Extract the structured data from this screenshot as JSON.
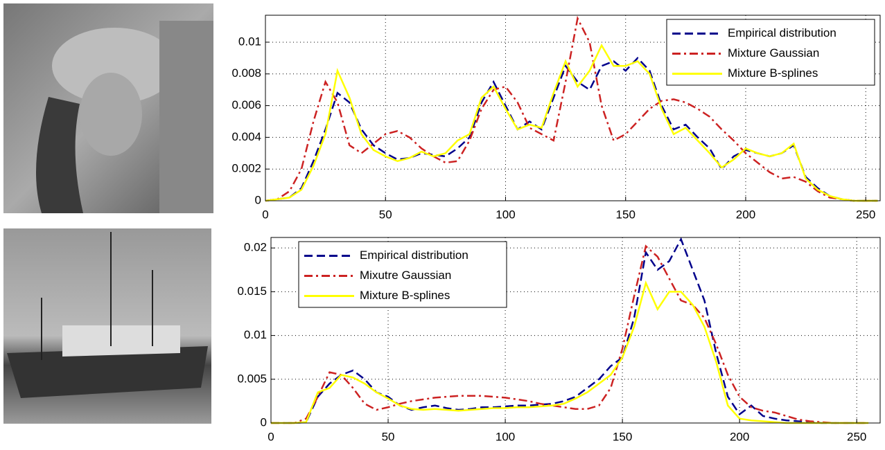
{
  "chart_data": [
    {
      "type": "line",
      "x": [
        0,
        5,
        10,
        15,
        20,
        25,
        30,
        35,
        40,
        45,
        50,
        55,
        60,
        65,
        70,
        75,
        80,
        85,
        90,
        95,
        100,
        105,
        110,
        115,
        120,
        125,
        130,
        135,
        140,
        145,
        150,
        155,
        160,
        165,
        170,
        175,
        180,
        185,
        190,
        195,
        200,
        205,
        210,
        215,
        220,
        225,
        230,
        235,
        240,
        245,
        250,
        255
      ],
      "series": [
        {
          "name": "Empirical distribution",
          "color": "#00008b",
          "style": "dashed",
          "values": [
            0,
            0.0001,
            0.0002,
            0.0008,
            0.0025,
            0.0045,
            0.0068,
            0.0062,
            0.0045,
            0.0035,
            0.003,
            0.0026,
            0.0027,
            0.003,
            0.0029,
            0.0028,
            0.0033,
            0.004,
            0.0062,
            0.0075,
            0.006,
            0.0045,
            0.005,
            0.0045,
            0.0065,
            0.0085,
            0.0075,
            0.007,
            0.0085,
            0.0088,
            0.0082,
            0.009,
            0.0082,
            0.006,
            0.0045,
            0.0048,
            0.004,
            0.0033,
            0.002,
            0.0028,
            0.0032,
            0.003,
            0.0028,
            0.003,
            0.0035,
            0.0015,
            0.0008,
            0.0003,
            0.0001,
            0,
            0,
            0
          ]
        },
        {
          "name": "Mixture Gaussian",
          "color": "#cc2222",
          "style": "dashdot",
          "values": [
            0,
            0.0001,
            0.0006,
            0.002,
            0.005,
            0.0075,
            0.0062,
            0.0035,
            0.003,
            0.0036,
            0.0042,
            0.0044,
            0.004,
            0.0033,
            0.0028,
            0.0024,
            0.0025,
            0.0038,
            0.0058,
            0.007,
            0.0072,
            0.0062,
            0.0046,
            0.0042,
            0.0038,
            0.0075,
            0.0115,
            0.01,
            0.006,
            0.0038,
            0.0042,
            0.005,
            0.0058,
            0.0063,
            0.0064,
            0.0062,
            0.0058,
            0.0053,
            0.0045,
            0.0038,
            0.003,
            0.0024,
            0.0018,
            0.0014,
            0.0015,
            0.0012,
            0.0006,
            0.0002,
            0.0001,
            0,
            0,
            0
          ]
        },
        {
          "name": "Mixture B-splines",
          "color": "#ffff00",
          "style": "solid",
          "values": [
            0,
            0.0001,
            0.0002,
            0.0007,
            0.0022,
            0.0042,
            0.0082,
            0.0065,
            0.0042,
            0.0032,
            0.0028,
            0.0025,
            0.0027,
            0.0031,
            0.0028,
            0.003,
            0.0038,
            0.0042,
            0.0065,
            0.0072,
            0.0058,
            0.0045,
            0.0048,
            0.0046,
            0.0068,
            0.0088,
            0.0072,
            0.0082,
            0.0098,
            0.0085,
            0.0085,
            0.0088,
            0.008,
            0.0058,
            0.0042,
            0.0046,
            0.0038,
            0.003,
            0.0021,
            0.0026,
            0.0033,
            0.003,
            0.0028,
            0.003,
            0.0036,
            0.0014,
            0.0007,
            0.0003,
            0.0001,
            0,
            0,
            0
          ]
        }
      ],
      "xlim": [
        0,
        256
      ],
      "xticks": [
        0,
        50,
        100,
        150,
        200,
        250
      ],
      "ylim": [
        0,
        0.0117
      ],
      "yticks": [
        0,
        0.002,
        0.004,
        0.006,
        0.008,
        0.01
      ],
      "grid": true,
      "legend": "upper-right"
    },
    {
      "type": "line",
      "x": [
        0,
        5,
        10,
        15,
        20,
        25,
        30,
        35,
        40,
        45,
        50,
        55,
        60,
        65,
        70,
        75,
        80,
        85,
        90,
        95,
        100,
        105,
        110,
        115,
        120,
        125,
        130,
        135,
        140,
        145,
        150,
        155,
        160,
        165,
        170,
        175,
        180,
        185,
        190,
        195,
        200,
        205,
        210,
        215,
        220,
        225,
        230,
        235,
        240,
        245,
        250,
        255
      ],
      "series": [
        {
          "name": "Empirical distribution",
          "color": "#00008b",
          "style": "dashed",
          "values": [
            0,
            0,
            0,
            0.0001,
            0.003,
            0.0045,
            0.0055,
            0.006,
            0.005,
            0.0035,
            0.003,
            0.002,
            0.0015,
            0.0018,
            0.002,
            0.0017,
            0.0015,
            0.0016,
            0.0018,
            0.0018,
            0.0019,
            0.002,
            0.002,
            0.0021,
            0.0022,
            0.0025,
            0.003,
            0.004,
            0.005,
            0.0065,
            0.0075,
            0.012,
            0.0195,
            0.0175,
            0.0185,
            0.021,
            0.0175,
            0.014,
            0.008,
            0.003,
            0.001,
            0.002,
            0.0008,
            0.0005,
            0.0003,
            0.0002,
            0.0001,
            0,
            0,
            0,
            0,
            0
          ]
        },
        {
          "name": "Mixutre Gaussian",
          "color": "#cc2222",
          "style": "dashdot",
          "values": [
            0,
            0,
            0,
            0.0005,
            0.003,
            0.0058,
            0.0055,
            0.004,
            0.0022,
            0.0015,
            0.0018,
            0.0022,
            0.0025,
            0.0027,
            0.0029,
            0.003,
            0.0031,
            0.0031,
            0.0031,
            0.003,
            0.0029,
            0.0027,
            0.0025,
            0.0022,
            0.002,
            0.0018,
            0.0016,
            0.0016,
            0.002,
            0.004,
            0.0085,
            0.0145,
            0.0202,
            0.019,
            0.0165,
            0.014,
            0.0135,
            0.012,
            0.009,
            0.0055,
            0.003,
            0.0018,
            0.0014,
            0.0012,
            0.0008,
            0.0004,
            0.0002,
            0.0001,
            0,
            0,
            0,
            0
          ]
        },
        {
          "name": "Mixture B-splines",
          "color": "#ffff00",
          "style": "solid",
          "values": [
            0,
            0,
            0,
            0.0001,
            0.0035,
            0.004,
            0.0055,
            0.0052,
            0.0045,
            0.0035,
            0.0028,
            0.002,
            0.0016,
            0.0015,
            0.0016,
            0.0015,
            0.0014,
            0.0015,
            0.0016,
            0.0017,
            0.0017,
            0.0018,
            0.0018,
            0.0019,
            0.002,
            0.0022,
            0.0028,
            0.0035,
            0.0045,
            0.0055,
            0.0075,
            0.011,
            0.016,
            0.013,
            0.015,
            0.015,
            0.0135,
            0.011,
            0.007,
            0.002,
            0.0005,
            0.0003,
            0.0002,
            0.0001,
            0,
            0,
            0,
            0,
            0,
            0,
            0,
            0
          ]
        }
      ],
      "xlim": [
        0,
        260
      ],
      "xticks": [
        0,
        50,
        100,
        150,
        200,
        250
      ],
      "ylim": [
        0,
        0.0212
      ],
      "yticks": [
        0,
        0.005,
        0.01,
        0.015,
        0.02
      ],
      "grid": true,
      "legend": "upper-left"
    }
  ]
}
